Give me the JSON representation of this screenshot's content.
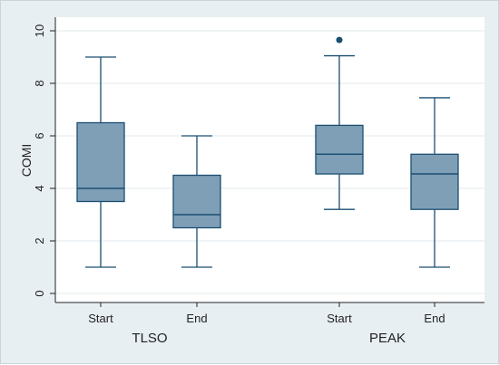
{
  "chart_data": {
    "type": "box",
    "ylabel": "COMI",
    "ylim": [
      0,
      10
    ],
    "yticks": [
      0,
      2,
      4,
      6,
      8,
      10
    ],
    "grid": true,
    "box_color": "#7f9fb6",
    "line_color": "#1b4f72",
    "outlier_color": "#1b4f72",
    "groups": [
      {
        "label": "TLSO",
        "boxes": [
          {
            "label": "Start",
            "min": 1.0,
            "q1": 3.5,
            "median": 4.0,
            "q3": 6.5,
            "max": 9.0,
            "outliers": []
          },
          {
            "label": "End",
            "min": 1.0,
            "q1": 2.5,
            "median": 3.0,
            "q3": 4.5,
            "max": 6.0,
            "outliers": []
          }
        ]
      },
      {
        "label": "PEAK",
        "boxes": [
          {
            "label": "Start",
            "min": 3.2,
            "q1": 4.55,
            "median": 5.3,
            "q3": 6.4,
            "max": 9.05,
            "outliers": [
              9.65
            ]
          },
          {
            "label": "End",
            "min": 1.0,
            "q1": 3.2,
            "median": 4.55,
            "q3": 5.3,
            "max": 7.45,
            "outliers": []
          }
        ]
      }
    ]
  }
}
